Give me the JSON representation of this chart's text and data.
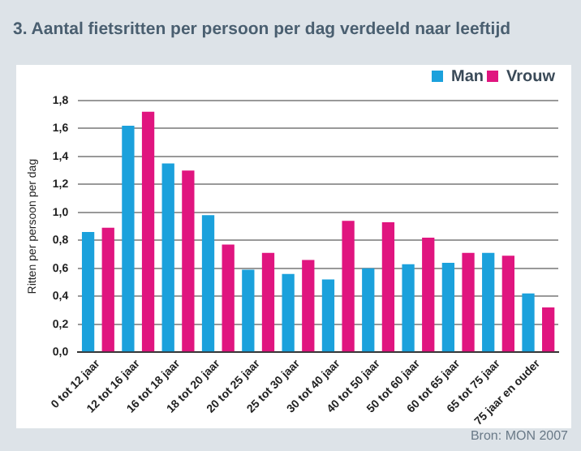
{
  "chart_data": {
    "type": "bar",
    "title": "3. Aantal fietsritten per persoon per dag verdeeld naar leeftijd",
    "ylabel": "Ritten per persoon per dag",
    "categories": [
      "0 tot 12 jaar",
      "12 tot 16 jaar",
      "16 tot 18 jaar",
      "18 tot 20 jaar",
      "20 tot 25 jaar",
      "25 tot 30 jaar",
      "30 tot 40 jaar",
      "40 tot 50 jaar",
      "50 tot 60 jaar",
      "60 tot 65 jaar",
      "65 tot 75 jaar",
      "75 jaar en ouder"
    ],
    "series": [
      {
        "name": "Man",
        "color": "#1ba1dc",
        "values": [
          0.86,
          1.62,
          1.35,
          0.98,
          0.59,
          0.56,
          0.52,
          0.6,
          0.63,
          0.64,
          0.71,
          0.42
        ]
      },
      {
        "name": "Vrouw",
        "color": "#e0157f",
        "values": [
          0.89,
          1.72,
          1.3,
          0.77,
          0.71,
          0.66,
          0.94,
          0.93,
          0.82,
          0.71,
          0.69,
          0.32
        ]
      }
    ],
    "ylim": [
      0,
      1.8
    ],
    "yticks": [
      {
        "value": 0,
        "label": "0,0"
      },
      {
        "value": 0.2,
        "label": "0,2"
      },
      {
        "value": 0.4,
        "label": "0,4"
      },
      {
        "value": 0.6,
        "label": "0,6"
      },
      {
        "value": 0.8,
        "label": "0,8"
      },
      {
        "value": 1.0,
        "label": "1,0"
      },
      {
        "value": 1.2,
        "label": "1,2"
      },
      {
        "value": 1.4,
        "label": "1,4"
      },
      {
        "value": 1.6,
        "label": "1,6"
      },
      {
        "value": 1.8,
        "label": "1,8"
      }
    ],
    "grid": "y",
    "legend": "top right",
    "annotations": [
      "Bron: MON 2007"
    ]
  }
}
